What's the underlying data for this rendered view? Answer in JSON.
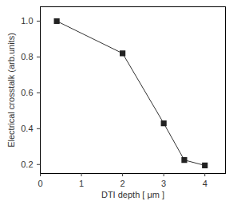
{
  "chart_data": {
    "type": "line",
    "x_label": "DTI depth [ μm ]",
    "y_label": "Electrical crosstalk (arb.units)",
    "x": [
      0.4,
      2,
      3,
      3.5,
      4
    ],
    "values": [
      1.0,
      0.82,
      0.43,
      0.225,
      0.195
    ],
    "color": "#333333",
    "marker": "square",
    "line_style": "solid",
    "xlim": [
      0,
      4.5
    ],
    "xticks": [
      0,
      1,
      2,
      3,
      4
    ],
    "ylim": [
      0.15,
      1.08
    ],
    "yticks": [
      0.2,
      0.4,
      0.6,
      0.8,
      {
        "value": 1,
        "label": "1.0"
      }
    ],
    "grid": false
  }
}
